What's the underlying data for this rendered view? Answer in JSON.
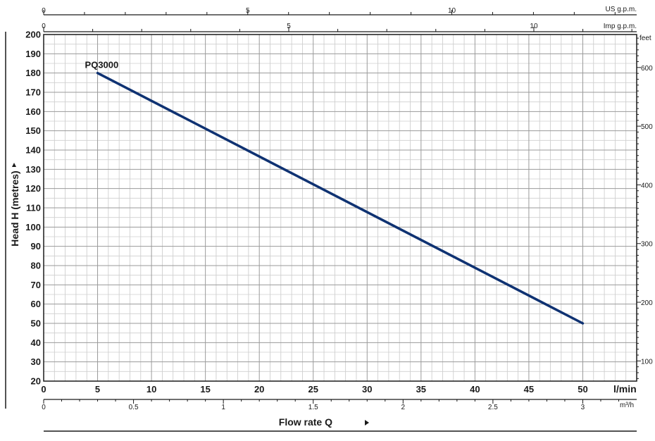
{
  "chart_data": {
    "type": "line",
    "ylabel": "Head H  (metres)",
    "xlabel": "Flow rate  Q",
    "x_unit": "l/min",
    "x_ticks": [
      "0",
      "5",
      "10",
      "15",
      "20",
      "25",
      "30",
      "35",
      "40",
      "45",
      "50"
    ],
    "xlim": [
      0,
      55
    ],
    "ylim": [
      20,
      200
    ],
    "y_ticks": [
      "20",
      "30",
      "40",
      "50",
      "60",
      "70",
      "80",
      "90",
      "100",
      "110",
      "120",
      "130",
      "140",
      "150",
      "160",
      "170",
      "180",
      "190",
      "200"
    ],
    "grid": true,
    "series": [
      {
        "name": "PQ3000",
        "x": [
          5,
          50
        ],
        "y": [
          180,
          50
        ],
        "color": "#0f3272"
      }
    ],
    "secondary_axes": {
      "us_gpm": {
        "unit": "US g.p.m.",
        "ticks": [
          "0",
          "5",
          "10"
        ]
      },
      "imp_gpm": {
        "unit": "Imp g.p.m.",
        "ticks": [
          "0",
          "5",
          "10"
        ]
      },
      "feet": {
        "unit": "feet",
        "ticks": [
          "100",
          "200",
          "300",
          "400",
          "500",
          "600"
        ]
      },
      "m3h": {
        "unit": "m³/h",
        "ticks": [
          "0",
          "0.5",
          "1",
          "1.5",
          "2",
          "2.5",
          "3"
        ]
      }
    }
  }
}
